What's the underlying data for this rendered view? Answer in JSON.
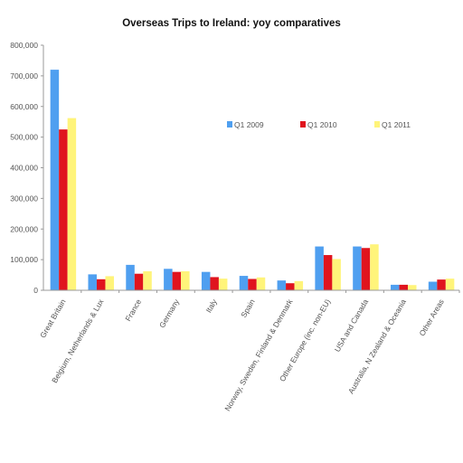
{
  "chart_data": {
    "type": "bar",
    "title": "Overseas Trips to Ireland: yoy comparatives",
    "categories": [
      "Great Britain",
      "Belgium, Netherlands & Lux",
      "France",
      "Germany",
      "Italy",
      "Spain",
      "Norway, Sweden, Finland & Denmark",
      "Other Europe (inc. non-EU)",
      "USA and Canada",
      "Australia, N Zealand & Oceania",
      "Other Areas"
    ],
    "series": [
      {
        "name": "Q1 2009",
        "color": "#4f9ff0",
        "values": [
          720000,
          52000,
          83000,
          70000,
          60000,
          47000,
          32000,
          143000,
          143000,
          18000,
          28000
        ]
      },
      {
        "name": "Q1 2010",
        "color": "#e0141e",
        "values": [
          525000,
          36000,
          54000,
          60000,
          43000,
          37000,
          23000,
          115000,
          138000,
          18000,
          35000
        ]
      },
      {
        "name": "Q1 2011",
        "color": "#fff47a",
        "values": [
          562000,
          46000,
          62000,
          62000,
          38000,
          42000,
          30000,
          102000,
          150000,
          17000,
          38000
        ]
      }
    ],
    "ylim": [
      0,
      800000
    ],
    "yticks": [
      "0",
      "100,000",
      "200,000",
      "300,000",
      "400,000",
      "500,000",
      "600,000",
      "700,000",
      "800,000"
    ],
    "legend_position": "upper-right inside plot",
    "grid": false
  }
}
